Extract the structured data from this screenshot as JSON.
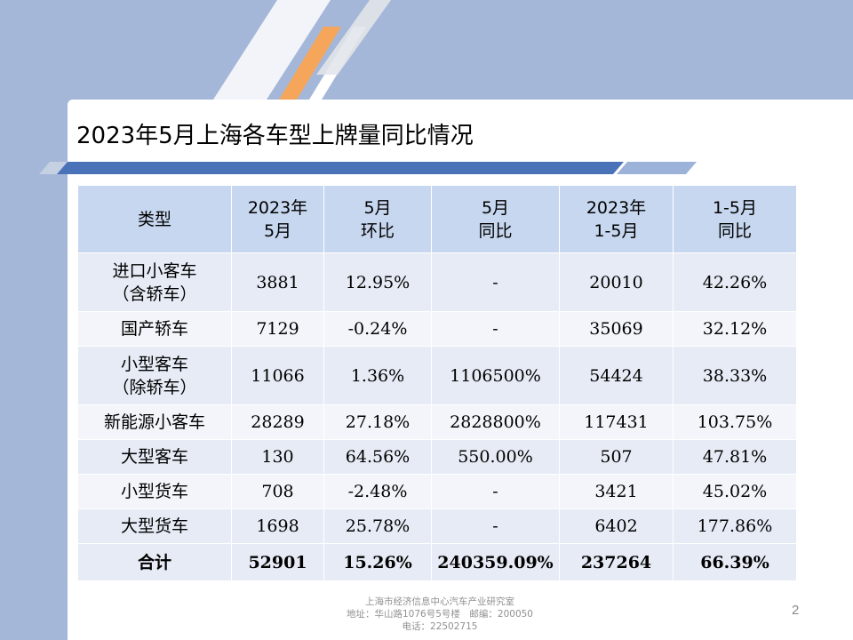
{
  "slide": {
    "title": "2023年5月上海各车型上牌量同比情况",
    "page_number": "2",
    "footer": {
      "line1": "上海市经济信息中心汽车产业研究室",
      "line2": "地址：华山路1076号5号楼　邮编：200050",
      "line3": "电话：22502715"
    },
    "colors": {
      "accent_blue": "#4a72b8",
      "accent_orange": "#f5a65b",
      "panel": "#a5b7d8",
      "header_fill": "#c7d7ef"
    }
  },
  "table": {
    "headers": [
      {
        "line1": "类型",
        "line2": ""
      },
      {
        "line1": "2023年",
        "line2": "5月"
      },
      {
        "line1": "5月",
        "line2": "环比"
      },
      {
        "line1": "5月",
        "line2": "同比"
      },
      {
        "line1": "2023年",
        "line2": "1-5月"
      },
      {
        "line1": "1-5月",
        "line2": "同比"
      }
    ],
    "rows": [
      {
        "type_line1": "进口小客车",
        "type_line2": "（含轿车）",
        "may": "3881",
        "mom": "12.95%",
        "yoy": "-",
        "ytd": "20010",
        "ytd_yoy": "42.26%"
      },
      {
        "type_line1": "国产轿车",
        "type_line2": "",
        "may": "7129",
        "mom": "-0.24%",
        "yoy": "-",
        "ytd": "35069",
        "ytd_yoy": "32.12%"
      },
      {
        "type_line1": "小型客车",
        "type_line2": "（除轿车）",
        "may": "11066",
        "mom": "1.36%",
        "yoy": "1106500%",
        "ytd": "54424",
        "ytd_yoy": "38.33%"
      },
      {
        "type_line1": "新能源小客车",
        "type_line2": "",
        "may": "28289",
        "mom": "27.18%",
        "yoy": "2828800%",
        "ytd": "117431",
        "ytd_yoy": "103.75%"
      },
      {
        "type_line1": "大型客车",
        "type_line2": "",
        "may": "130",
        "mom": "64.56%",
        "yoy": "550.00%",
        "ytd": "507",
        "ytd_yoy": "47.81%"
      },
      {
        "type_line1": "小型货车",
        "type_line2": "",
        "may": "708",
        "mom": "-2.48%",
        "yoy": "-",
        "ytd": "3421",
        "ytd_yoy": "45.02%"
      },
      {
        "type_line1": "大型货车",
        "type_line2": "",
        "may": "1698",
        "mom": "25.78%",
        "yoy": "-",
        "ytd": "6402",
        "ytd_yoy": "177.86%"
      }
    ],
    "total": {
      "label": "合计",
      "may": "52901",
      "mom": "15.26%",
      "yoy": "240359.09%",
      "ytd": "237264",
      "ytd_yoy": "66.39%"
    }
  }
}
